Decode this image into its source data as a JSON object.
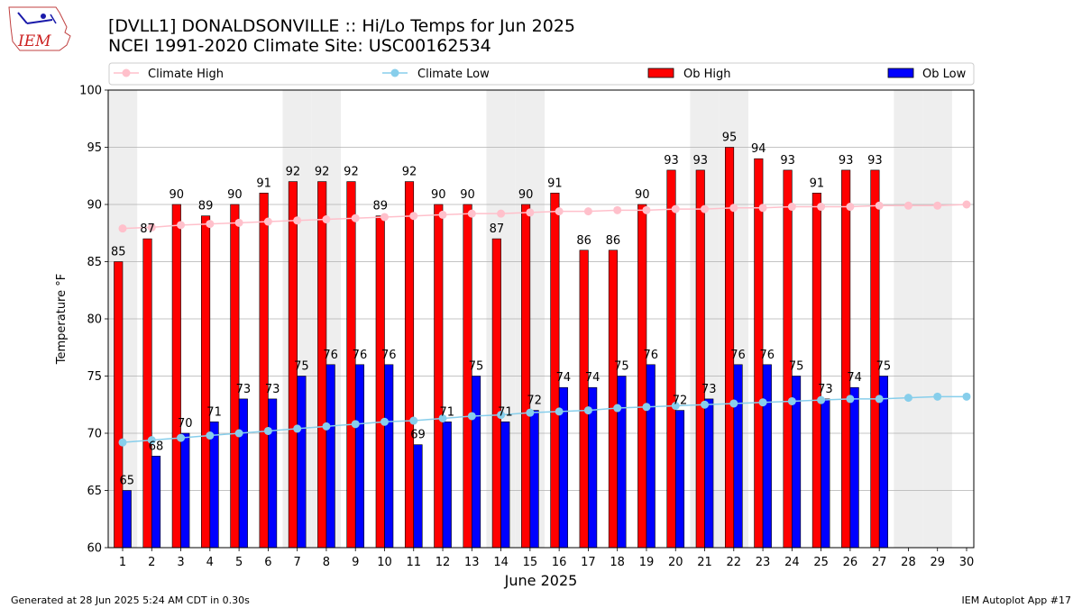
{
  "logo_text": "IEM",
  "chart_data": {
    "type": "bar",
    "title": "[DVLL1] DONALDSONVILLE :: Hi/Lo Temps for Jun 2025",
    "subtitle": "NCEI 1991-2020 Climate Site: USC00162534",
    "xlabel": "June 2025",
    "ylabel": "Temperature °F",
    "ylim": [
      60,
      100
    ],
    "yticks": [
      60,
      65,
      70,
      75,
      80,
      85,
      90,
      95,
      100
    ],
    "categories": [
      "1",
      "2",
      "3",
      "4",
      "5",
      "6",
      "7",
      "8",
      "9",
      "10",
      "11",
      "12",
      "13",
      "14",
      "15",
      "16",
      "17",
      "18",
      "19",
      "20",
      "21",
      "22",
      "23",
      "24",
      "25",
      "26",
      "27",
      "28",
      "29",
      "30"
    ],
    "weekend_days": [
      1,
      7,
      8,
      14,
      15,
      21,
      22,
      28,
      29
    ],
    "grid": true,
    "legend_placement": "top",
    "series": [
      {
        "name": "Climate High",
        "kind": "line",
        "color": "#ffc0cb",
        "values": [
          87.9,
          88.0,
          88.2,
          88.3,
          88.4,
          88.5,
          88.6,
          88.7,
          88.8,
          88.9,
          89.0,
          89.1,
          89.2,
          89.2,
          89.3,
          89.4,
          89.4,
          89.5,
          89.5,
          89.6,
          89.6,
          89.7,
          89.7,
          89.8,
          89.8,
          89.8,
          89.9,
          89.9,
          89.9,
          90.0
        ]
      },
      {
        "name": "Climate Low",
        "kind": "line",
        "color": "#87ceeb",
        "values": [
          69.2,
          69.4,
          69.6,
          69.8,
          70.0,
          70.2,
          70.4,
          70.6,
          70.8,
          71.0,
          71.1,
          71.3,
          71.5,
          71.6,
          71.8,
          71.9,
          72.0,
          72.2,
          72.3,
          72.4,
          72.5,
          72.6,
          72.7,
          72.8,
          72.9,
          73.0,
          73.0,
          73.1,
          73.2,
          73.2
        ]
      },
      {
        "name": "Ob High",
        "kind": "bar",
        "color": "#ff0000",
        "values": [
          85,
          87,
          90,
          89,
          90,
          91,
          92,
          92,
          92,
          89,
          92,
          90,
          90,
          87,
          90,
          91,
          86,
          86,
          90,
          93,
          93,
          95,
          94,
          93,
          91,
          93,
          93,
          null,
          null,
          null
        ]
      },
      {
        "name": "Ob Low",
        "kind": "bar",
        "color": "#0000ff",
        "values": [
          65,
          68,
          70,
          71,
          73,
          73,
          75,
          76,
          76,
          76,
          69,
          71,
          75,
          71,
          72,
          74,
          74,
          75,
          76,
          72,
          73,
          76,
          76,
          75,
          73,
          74,
          75,
          null,
          null,
          null
        ]
      }
    ]
  },
  "footer": {
    "generated": "Generated at 28 Jun 2025 5:24 AM CDT in 0.30s",
    "app": "IEM Autoplot App #17"
  }
}
